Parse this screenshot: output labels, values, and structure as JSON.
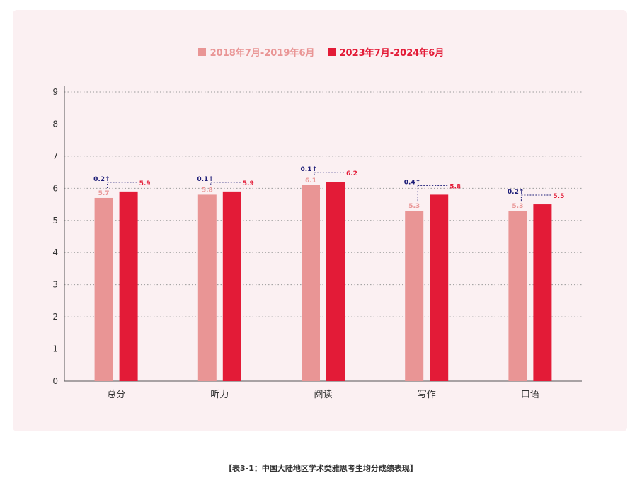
{
  "caption": "【表3-1：中国大陆地区学术类雅思考生均分成绩表现】",
  "colors": {
    "series1": "#e99595",
    "series2": "#e31b37",
    "diff": "#1e1e78",
    "panel": "#fbf0f2"
  },
  "chart_data": {
    "type": "bar",
    "categories": [
      "总分",
      "听力",
      "阅读",
      "写作",
      "口语"
    ],
    "series": [
      {
        "name": "2018年7月-2019年6月",
        "values": [
          5.7,
          5.8,
          6.1,
          5.3,
          5.3
        ]
      },
      {
        "name": "2023年7月-2024年6月",
        "values": [
          5.9,
          5.9,
          6.2,
          5.8,
          5.5
        ]
      }
    ],
    "data_labels": [
      [
        "5.7",
        "5.8",
        "6.1",
        "5.3",
        "5.3"
      ],
      [
        "5.9",
        "5.9",
        "6.2",
        "5.8",
        "5.5"
      ]
    ],
    "differences": [
      "0.2↑",
      "0.1↑",
      "0.1↑",
      "0.4↑",
      "0.2↑"
    ],
    "yticks": [
      "0",
      "1",
      "2",
      "3",
      "4",
      "5",
      "6",
      "7",
      "8",
      "9"
    ],
    "ylim": [
      0,
      9
    ],
    "grid": true,
    "legend_position": "top-center"
  }
}
